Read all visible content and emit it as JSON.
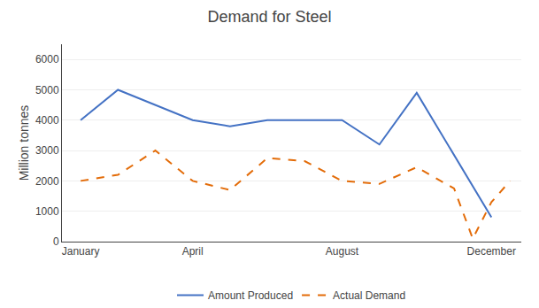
{
  "chart_data": {
    "type": "line",
    "title": "Demand for Steel",
    "ylabel": "Million tonnes",
    "series": [
      {
        "name": "Amount Produced",
        "color": "#4472C4",
        "line_style": "solid",
        "x": [
          0,
          1,
          3,
          4,
          5,
          7,
          8,
          9,
          11
        ],
        "values": [
          4000,
          5000,
          4000,
          3800,
          4000,
          4000,
          3200,
          4900,
          800
        ]
      },
      {
        "name": "Actual Demand",
        "color": "#E36C09",
        "line_style": "dashed",
        "x": [
          0,
          1,
          2,
          3,
          4,
          5,
          6,
          7,
          8,
          9,
          10,
          10.5,
          11,
          11.5
        ],
        "values": [
          2000,
          2200,
          3000,
          2000,
          1700,
          2750,
          2650,
          2000,
          1900,
          2450,
          1750,
          100,
          1300,
          2000
        ]
      }
    ],
    "xlim": [
      -0.5,
      11.8
    ],
    "xticks": [
      {
        "value": 0,
        "label": "January"
      },
      {
        "value": 3,
        "label": "April"
      },
      {
        "value": 7,
        "label": "August"
      },
      {
        "value": 11,
        "label": "December"
      }
    ],
    "ylim": [
      0,
      6500
    ],
    "yticks": [
      0,
      1000,
      2000,
      3000,
      4000,
      5000,
      6000
    ],
    "grid": "y",
    "legend": "bottom"
  }
}
